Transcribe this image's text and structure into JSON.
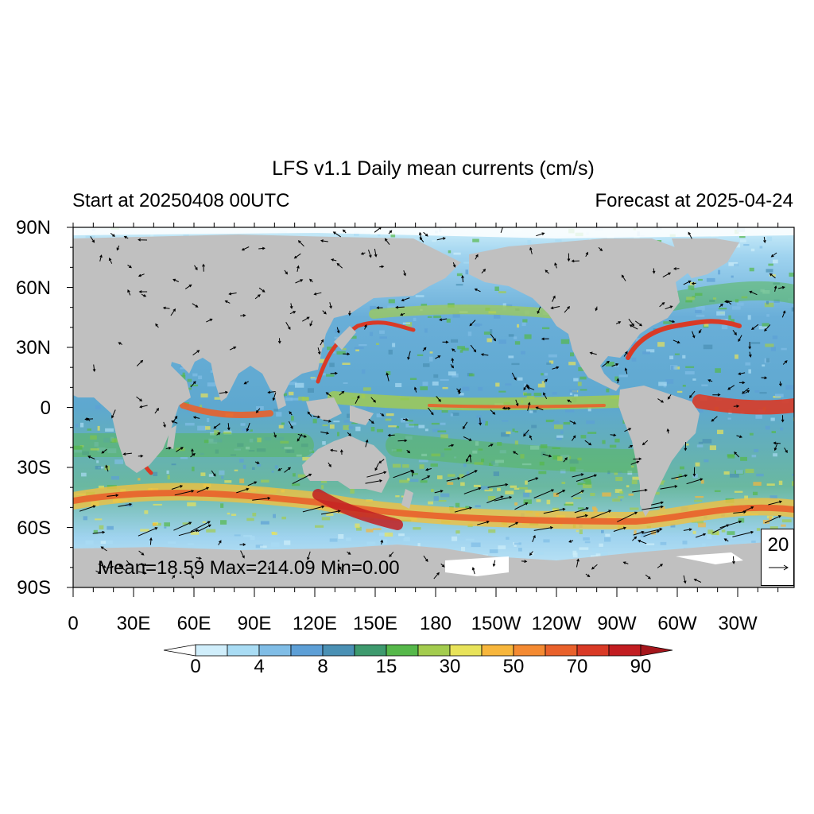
{
  "title": "LFS v1.1 Daily mean currents (cm/s)",
  "subtitle_left": "Start at 20250408 00UTC",
  "subtitle_right": "Forecast at 2025-04-24",
  "stats": "Mean=18.59  Max=214.09  Min=0.00",
  "reference_vector": "20",
  "y_ticks": [
    "90N",
    "60N",
    "30N",
    "0",
    "30S",
    "60S",
    "90S"
  ],
  "x_ticks": [
    "0",
    "30E",
    "60E",
    "90E",
    "120E",
    "150E",
    "180",
    "150W",
    "120W",
    "90W",
    "60W",
    "30W"
  ],
  "colorbar": {
    "labels": [
      "0",
      "4",
      "8",
      "15",
      "30",
      "50",
      "70",
      "90"
    ],
    "colors": [
      "#ffffff",
      "#d0eefb",
      "#a9dcf4",
      "#80bde6",
      "#5d9fd6",
      "#4a90b4",
      "#3e9a6e",
      "#56b84a",
      "#a3cc4e",
      "#e8e35a",
      "#f7b63c",
      "#f48a32",
      "#e9612b",
      "#d93a26",
      "#c21d21",
      "#a5161c"
    ]
  },
  "colors": {
    "land": "#c0c0c0",
    "ice": "#ffffff",
    "ocean_base": "#7ec0e4"
  }
}
